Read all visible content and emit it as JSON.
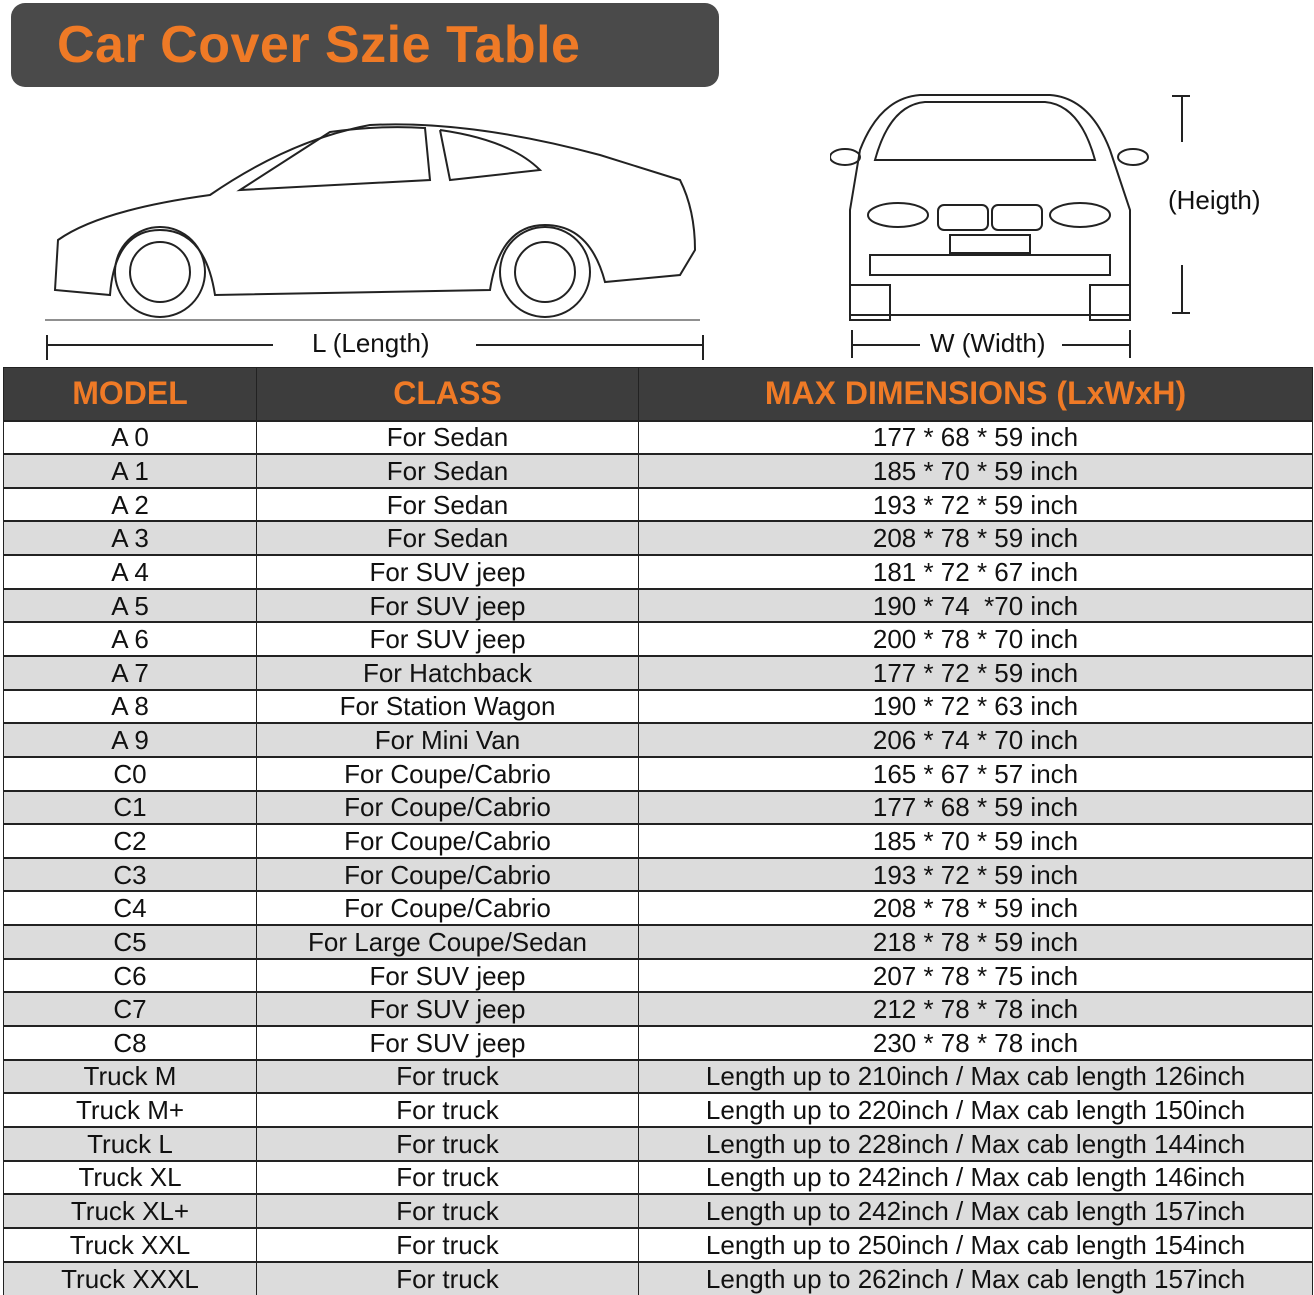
{
  "title": "Car Cover Szie Table",
  "labels": {
    "length": "L (Length)",
    "width": "W (Width)",
    "height": "(Heigth)"
  },
  "colors": {
    "accent": "#ef7a26",
    "header_bg": "#3d3d3d",
    "stripe": "#dcdcdc"
  },
  "table": {
    "headers": [
      "MODEL",
      "CLASS",
      "MAX DIMENSIONS (LxWxH)"
    ],
    "rows": [
      [
        "A 0",
        "For Sedan",
        "177 * 68 * 59 inch"
      ],
      [
        "A 1",
        "For Sedan",
        "185 * 70 * 59 inch"
      ],
      [
        "A 2",
        "For Sedan",
        "193 * 72 * 59 inch"
      ],
      [
        "A 3",
        "For Sedan",
        "208 * 78 * 59 inch"
      ],
      [
        "A 4",
        "For SUV jeep",
        "181 * 72 * 67 inch"
      ],
      [
        "A 5",
        "For SUV jeep",
        "190 * 74  *70 inch"
      ],
      [
        "A 6",
        "For SUV jeep",
        "200 * 78 * 70 inch"
      ],
      [
        "A 7",
        "For Hatchback",
        "177 * 72 * 59 inch"
      ],
      [
        "A 8",
        "For Station Wagon",
        "190 * 72 * 63 inch"
      ],
      [
        "A 9",
        "For Mini Van",
        "206 * 74 * 70 inch"
      ],
      [
        "C0",
        "For Coupe/Cabrio",
        "165 * 67 * 57 inch"
      ],
      [
        "C1",
        "For Coupe/Cabrio",
        "177 * 68 * 59 inch"
      ],
      [
        "C2",
        "For Coupe/Cabrio",
        "185 * 70 * 59 inch"
      ],
      [
        "C3",
        "For Coupe/Cabrio",
        "193 * 72 * 59 inch"
      ],
      [
        "C4",
        "For Coupe/Cabrio",
        "208 * 78 * 59 inch"
      ],
      [
        "C5",
        "For Large Coupe/Sedan",
        "218 * 78 * 59 inch"
      ],
      [
        "C6",
        "For SUV jeep",
        "207 * 78 * 75 inch"
      ],
      [
        "C7",
        "For SUV jeep",
        "212 * 78 * 78 inch"
      ],
      [
        "C8",
        "For SUV jeep",
        "230 * 78 * 78 inch"
      ],
      [
        "Truck M",
        "For truck",
        "Length up to 210inch / Max cab length 126inch"
      ],
      [
        "Truck M+",
        "For truck",
        "Length up to 220inch / Max cab length 150inch"
      ],
      [
        "Truck L",
        "For truck",
        "Length up to 228inch / Max cab length 144inch"
      ],
      [
        "Truck XL",
        "For truck",
        "Length up to 242inch / Max cab length 146inch"
      ],
      [
        "Truck XL+",
        "For truck",
        "Length up to 242inch / Max cab length 157inch"
      ],
      [
        "Truck XXL",
        "For truck",
        "Length up to 250inch / Max cab length 154inch"
      ],
      [
        "Truck XXXL",
        "For truck",
        "Length up to 262inch / Max cab length 157inch"
      ]
    ]
  }
}
